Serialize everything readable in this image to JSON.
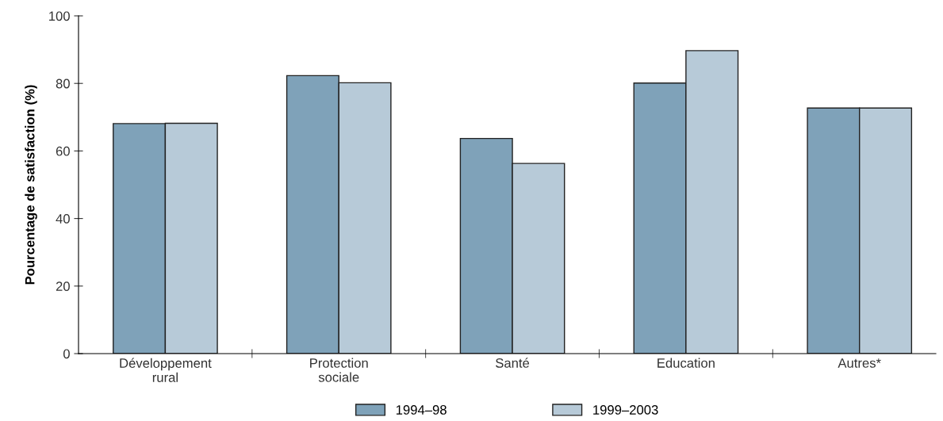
{
  "chart_data": {
    "type": "bar",
    "ylabel": "Pourcentage de satisfaction (%)",
    "categories": [
      "Développement\nrural",
      "Protection\nsociale",
      "Santé",
      "Education",
      "Autres*"
    ],
    "series": [
      {
        "name": "1994–98",
        "color": "#7fa2b9",
        "values": [
          68.1,
          82.3,
          63.7,
          80.1,
          72.7
        ]
      },
      {
        "name": "1999–2003",
        "color": "#b7cad8",
        "values": [
          68.2,
          80.2,
          56.3,
          89.7,
          72.7
        ]
      }
    ],
    "ylim": [
      0,
      100
    ],
    "yticks": [
      0,
      20,
      40,
      60,
      80,
      100
    ],
    "grid": false,
    "legend": "bottom"
  }
}
